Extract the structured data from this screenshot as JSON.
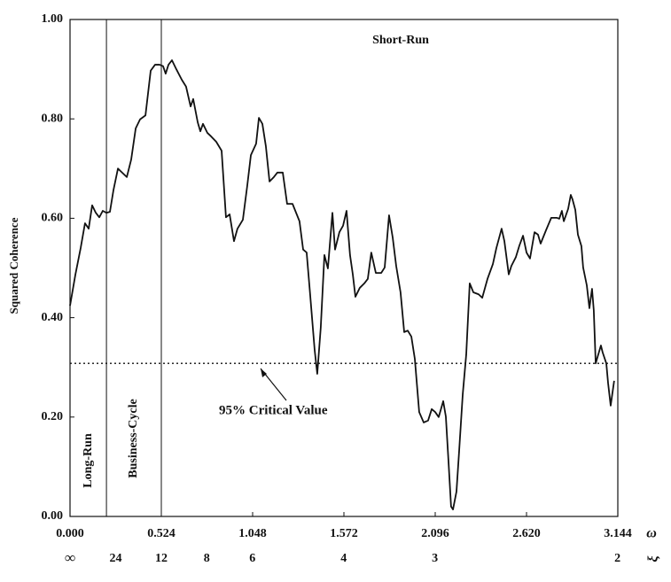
{
  "chart_data": {
    "type": "line",
    "y_label": "Squared Coherence",
    "x_label": "ω",
    "x2_label": "ξ",
    "xlim": [
      0,
      3.144
    ],
    "ylim": [
      0,
      1
    ],
    "xticks": [
      {
        "value": 0,
        "label": "0.000"
      },
      0.524,
      1.048,
      1.572,
      2.096,
      {
        "value": 2.62,
        "label": "2.620"
      },
      3.144
    ],
    "yticks": [
      {
        "value": 0,
        "label": "0.00"
      },
      {
        "value": 0.2,
        "label": "0.20"
      },
      {
        "value": 0.4,
        "label": "0.40"
      },
      {
        "value": 0.6,
        "label": "0.60"
      },
      {
        "value": 0.8,
        "label": "0.80"
      },
      {
        "value": 1,
        "label": "1.00"
      }
    ],
    "x2ticks": [
      {
        "value": 0,
        "label": "∞"
      },
      {
        "value": 0.262,
        "label": "24"
      },
      {
        "value": 0.524,
        "label": "12"
      },
      {
        "value": 0.785,
        "label": "8"
      },
      {
        "value": 1.047,
        "label": "6"
      },
      {
        "value": 1.571,
        "label": "4"
      },
      {
        "value": 2.094,
        "label": "3"
      },
      {
        "value": 3.142,
        "label": "2"
      }
    ],
    "band_boundaries": [
      0.209,
      0.524
    ],
    "band_labels": [
      "Long-Run",
      "Business-Cycle",
      "Short-Run"
    ],
    "critical_value": 0.308,
    "critical_value_label": "95% Critical Value",
    "x": [
      0.0,
      0.031,
      0.061,
      0.086,
      0.107,
      0.127,
      0.148,
      0.168,
      0.188,
      0.209,
      0.229,
      0.249,
      0.275,
      0.29,
      0.326,
      0.351,
      0.377,
      0.402,
      0.433,
      0.463,
      0.488,
      0.514,
      0.534,
      0.549,
      0.565,
      0.585,
      0.61,
      0.641,
      0.666,
      0.692,
      0.707,
      0.733,
      0.748,
      0.763,
      0.788,
      0.809,
      0.839,
      0.87,
      0.895,
      0.916,
      0.941,
      0.961,
      0.992,
      1.017,
      1.038,
      1.068,
      1.084,
      1.104,
      1.124,
      1.145,
      1.17,
      1.19,
      1.221,
      1.246,
      1.277,
      1.317,
      1.338,
      1.358,
      1.378,
      1.404,
      1.419,
      1.439,
      1.46,
      1.48,
      1.506,
      1.521,
      1.546,
      1.567,
      1.587,
      1.607,
      1.623,
      1.638,
      1.663,
      1.689,
      1.709,
      1.729,
      1.755,
      1.786,
      1.806,
      1.831,
      1.852,
      1.872,
      1.897,
      1.918,
      1.938,
      1.959,
      1.979,
      2.004,
      2.03,
      2.055,
      2.076,
      2.096,
      2.116,
      2.142,
      2.157,
      2.172,
      2.187,
      2.198,
      2.218,
      2.233,
      2.254,
      2.274,
      2.294,
      2.315,
      2.345,
      2.366,
      2.396,
      2.427,
      2.447,
      2.477,
      2.493,
      2.518,
      2.533,
      2.559,
      2.579,
      2.6,
      2.62,
      2.64,
      2.666,
      2.686,
      2.701,
      2.732,
      2.762,
      2.793,
      2.808,
      2.823,
      2.834,
      2.859,
      2.874,
      2.884,
      2.9,
      2.915,
      2.935,
      2.945,
      2.966,
      2.981,
      2.996,
      3.006,
      3.017,
      3.032,
      3.047,
      3.057,
      3.078,
      3.088,
      3.103,
      3.123
    ],
    "series": [
      {
        "color": "#111111",
        "values": [
          0.424,
          0.487,
          0.54,
          0.59,
          0.579,
          0.626,
          0.611,
          0.602,
          0.615,
          0.611,
          0.613,
          0.656,
          0.7,
          0.695,
          0.683,
          0.718,
          0.781,
          0.799,
          0.807,
          0.897,
          0.909,
          0.909,
          0.906,
          0.891,
          0.909,
          0.918,
          0.9,
          0.879,
          0.865,
          0.825,
          0.84,
          0.793,
          0.775,
          0.79,
          0.772,
          0.765,
          0.754,
          0.736,
          0.602,
          0.608,
          0.554,
          0.579,
          0.597,
          0.665,
          0.727,
          0.75,
          0.802,
          0.79,
          0.745,
          0.674,
          0.683,
          0.692,
          0.692,
          0.629,
          0.629,
          0.594,
          0.537,
          0.531,
          0.447,
          0.335,
          0.287,
          0.38,
          0.526,
          0.499,
          0.611,
          0.537,
          0.572,
          0.585,
          0.615,
          0.526,
          0.487,
          0.442,
          0.46,
          0.469,
          0.478,
          0.531,
          0.49,
          0.49,
          0.501,
          0.606,
          0.561,
          0.504,
          0.451,
          0.371,
          0.374,
          0.362,
          0.317,
          0.21,
          0.189,
          0.193,
          0.216,
          0.21,
          0.2,
          0.232,
          0.201,
          0.112,
          0.02,
          0.014,
          0.05,
          0.13,
          0.246,
          0.326,
          0.469,
          0.451,
          0.447,
          0.44,
          0.478,
          0.508,
          0.54,
          0.579,
          0.554,
          0.487,
          0.504,
          0.522,
          0.545,
          0.565,
          0.531,
          0.519,
          0.572,
          0.567,
          0.549,
          0.576,
          0.601,
          0.601,
          0.599,
          0.615,
          0.594,
          0.619,
          0.647,
          0.638,
          0.617,
          0.567,
          0.544,
          0.501,
          0.465,
          0.419,
          0.458,
          0.415,
          0.308,
          0.326,
          0.344,
          0.33,
          0.308,
          0.269,
          0.223,
          0.273
        ]
      }
    ]
  }
}
